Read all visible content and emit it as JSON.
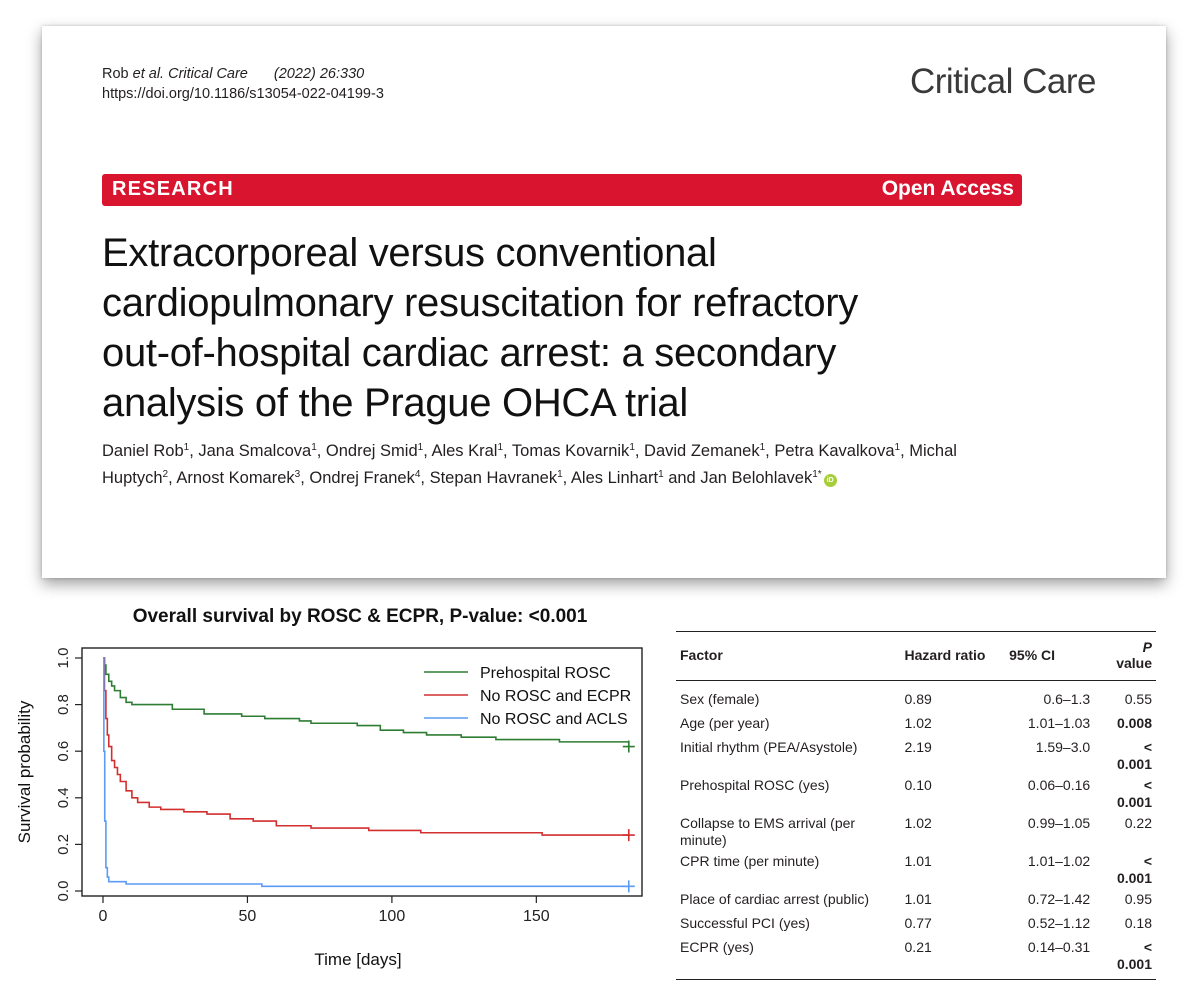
{
  "paper": {
    "citation_authors": "Rob",
    "citation_etal": "et al.",
    "citation_journal": "Critical Care",
    "citation_year": "(2022) 26:330",
    "doi": "https://doi.org/10.1186/s13054-022-04199-3",
    "journal_name": "Critical Care",
    "section_label": "RESEARCH",
    "access_label": "Open Access",
    "title_lines": [
      "Extracorporeal versus conventional",
      "cardiopulmonary resuscitation for refractory",
      "out-of-hospital cardiac arrest: a secondary",
      "analysis of the Prague OHCA trial"
    ],
    "authors": [
      {
        "name": "Daniel Rob",
        "aff": "1"
      },
      {
        "name": "Jana Smalcova",
        "aff": "1"
      },
      {
        "name": "Ondrej Smid",
        "aff": "1"
      },
      {
        "name": "Ales Kral",
        "aff": "1"
      },
      {
        "name": "Tomas Kovarnik",
        "aff": "1"
      },
      {
        "name": "David Zemanek",
        "aff": "1"
      },
      {
        "name": "Petra Kavalkova",
        "aff": "1"
      },
      {
        "name": "Michal Huptych",
        "aff": "2"
      },
      {
        "name": "Arnost Komarek",
        "aff": "3"
      },
      {
        "name": "Ondrej Franek",
        "aff": "4"
      },
      {
        "name": "Stepan Havranek",
        "aff": "1"
      },
      {
        "name": "Ales Linhart",
        "aff": "1"
      },
      {
        "name": "Jan Belohlavek",
        "aff": "1*"
      }
    ],
    "orcid_label": "iD"
  },
  "chart_data": {
    "type": "line",
    "title": "Overall survival by ROSC & ECPR, P-value: <0.001",
    "xlabel": "Time [days]",
    "ylabel": "Survival probability",
    "xlim": [
      0,
      180
    ],
    "ylim": [
      0,
      1
    ],
    "xticks": [
      0,
      50,
      100,
      150
    ],
    "yticks": [
      "0.0",
      "0.2",
      "0.4",
      "0.6",
      "0.8",
      "1.0"
    ],
    "legend_position": "top-right",
    "series": [
      {
        "name": "Prehospital ROSC",
        "color": "#2e7d32",
        "points": [
          [
            0,
            1.0
          ],
          [
            0.5,
            0.97
          ],
          [
            1,
            0.93
          ],
          [
            2,
            0.9
          ],
          [
            3,
            0.88
          ],
          [
            4,
            0.86
          ],
          [
            6,
            0.83
          ],
          [
            8,
            0.81
          ],
          [
            10,
            0.8
          ],
          [
            18,
            0.8
          ],
          [
            24,
            0.78
          ],
          [
            35,
            0.76
          ],
          [
            48,
            0.75
          ],
          [
            56,
            0.74
          ],
          [
            68,
            0.73
          ],
          [
            72,
            0.72
          ],
          [
            88,
            0.71
          ],
          [
            96,
            0.69
          ],
          [
            104,
            0.68
          ],
          [
            112,
            0.67
          ],
          [
            124,
            0.66
          ],
          [
            136,
            0.65
          ],
          [
            150,
            0.65
          ],
          [
            158,
            0.64
          ],
          [
            182,
            0.62
          ]
        ]
      },
      {
        "name": "No ROSC and ECPR",
        "color": "#d32f2f",
        "points": [
          [
            0,
            1.0
          ],
          [
            0.5,
            0.86
          ],
          [
            1,
            0.74
          ],
          [
            1.5,
            0.67
          ],
          [
            2,
            0.62
          ],
          [
            3,
            0.56
          ],
          [
            4,
            0.53
          ],
          [
            5,
            0.5
          ],
          [
            6,
            0.47
          ],
          [
            8,
            0.43
          ],
          [
            10,
            0.4
          ],
          [
            12,
            0.38
          ],
          [
            16,
            0.36
          ],
          [
            20,
            0.35
          ],
          [
            28,
            0.34
          ],
          [
            36,
            0.33
          ],
          [
            44,
            0.31
          ],
          [
            52,
            0.3
          ],
          [
            60,
            0.28
          ],
          [
            72,
            0.27
          ],
          [
            92,
            0.26
          ],
          [
            110,
            0.25
          ],
          [
            134,
            0.25
          ],
          [
            152,
            0.24
          ],
          [
            182,
            0.24
          ]
        ]
      },
      {
        "name": "No ROSC and ACLS",
        "color": "#5b9bf5",
        "points": [
          [
            0,
            1.0
          ],
          [
            0.3,
            0.6
          ],
          [
            0.6,
            0.3
          ],
          [
            1,
            0.1
          ],
          [
            1.5,
            0.06
          ],
          [
            2,
            0.04
          ],
          [
            8,
            0.03
          ],
          [
            55,
            0.02
          ],
          [
            120,
            0.02
          ],
          [
            182,
            0.02
          ]
        ]
      }
    ]
  },
  "table": {
    "headers": [
      "Factor",
      "Hazard ratio",
      "95% CI",
      "P",
      " value"
    ],
    "rows": [
      {
        "factor": "Sex (female)",
        "hr": "0.89",
        "ci": "0.6–1.3",
        "p": "0.55",
        "bold": false
      },
      {
        "factor": "Age (per year)",
        "hr": "1.02",
        "ci": "1.01–1.03",
        "p": "0.008",
        "bold": true
      },
      {
        "factor": "Initial rhythm (PEA/Asystole)",
        "hr": "2.19",
        "ci": "1.59–3.0",
        "p": "< 0.001",
        "bold": true
      },
      {
        "factor": "Prehospital ROSC (yes)",
        "hr": "0.10",
        "ci": "0.06–0.16",
        "p": "< 0.001",
        "bold": true
      },
      {
        "factor": "Collapse to EMS arrival (per minute)",
        "hr": "1.02",
        "ci": "0.99–1.05",
        "p": "0.22",
        "bold": false
      },
      {
        "factor": "CPR time (per minute)",
        "hr": "1.01",
        "ci": "1.01–1.02",
        "p": "< 0.001",
        "bold": true
      },
      {
        "factor": "Place of cardiac arrest (public)",
        "hr": "1.01",
        "ci": "0.72–1.42",
        "p": "0.95",
        "bold": false
      },
      {
        "factor": "Successful PCI (yes)",
        "hr": "0.77",
        "ci": "0.52–1.12",
        "p": "0.18",
        "bold": false
      },
      {
        "factor": "ECPR (yes)",
        "hr": "0.21",
        "ci": "0.14–0.31",
        "p": "< 0.001",
        "bold": true
      }
    ]
  }
}
